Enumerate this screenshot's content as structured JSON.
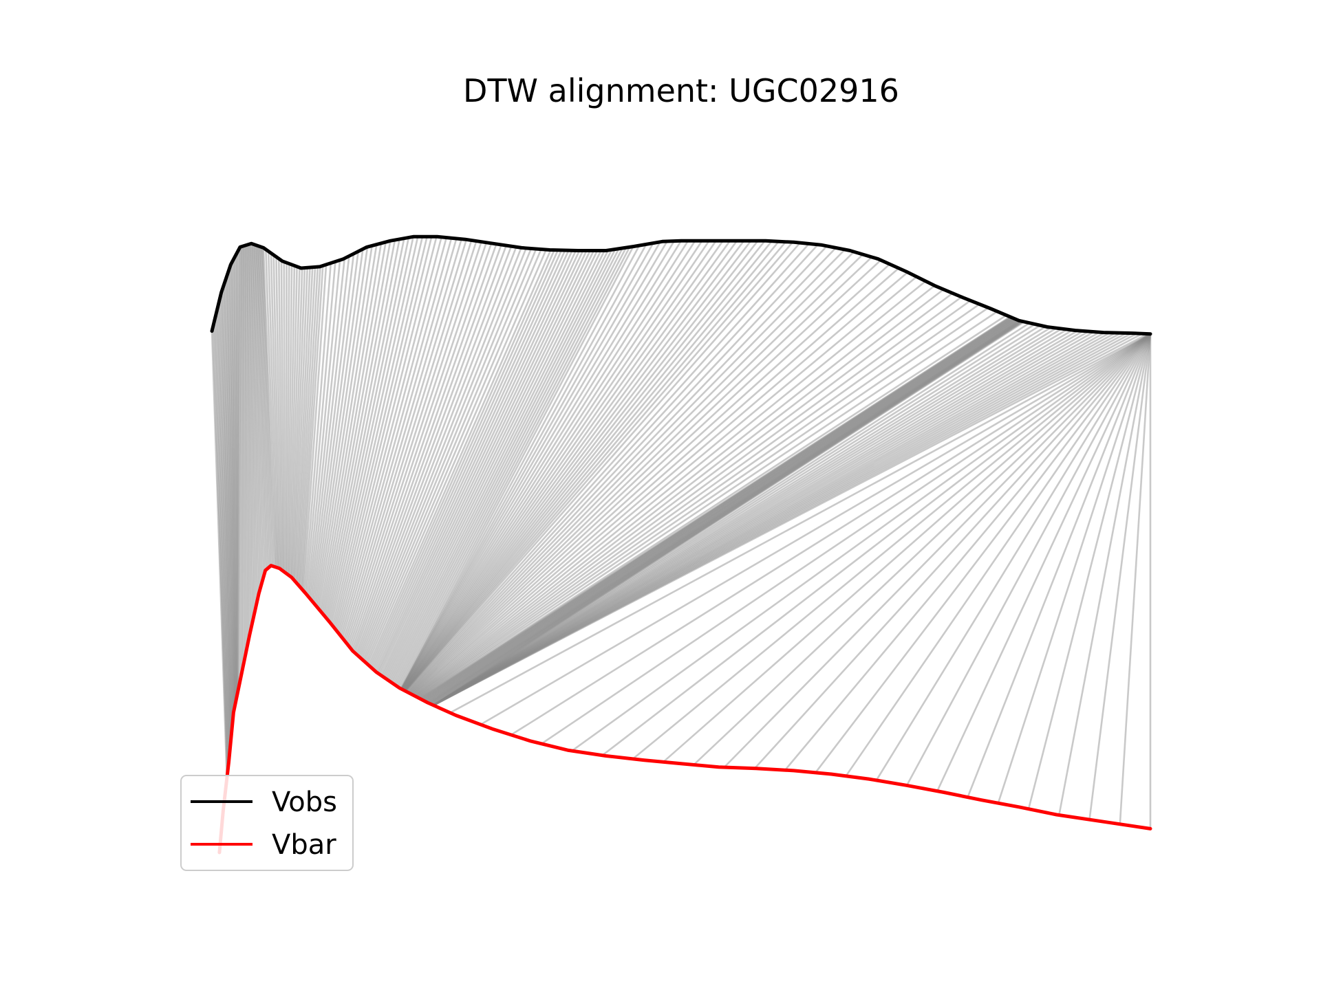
{
  "chart_data": {
    "type": "line",
    "title": "DTW alignment: UGC02916",
    "xlabel": "",
    "ylabel": "",
    "axes_visible": false,
    "grid": false,
    "legend": {
      "placement": "lower-left",
      "entries": [
        "Vobs",
        "Vbar"
      ]
    },
    "x_range": [
      0,
      1
    ],
    "y_range": [
      0,
      1
    ],
    "series": [
      {
        "name": "Vobs",
        "color": "#000000",
        "points": [
          [
            0.0,
            0.745
          ],
          [
            0.01,
            0.8
          ],
          [
            0.02,
            0.84
          ],
          [
            0.03,
            0.865
          ],
          [
            0.042,
            0.87
          ],
          [
            0.055,
            0.864
          ],
          [
            0.075,
            0.845
          ],
          [
            0.095,
            0.835
          ],
          [
            0.115,
            0.837
          ],
          [
            0.14,
            0.848
          ],
          [
            0.165,
            0.865
          ],
          [
            0.19,
            0.874
          ],
          [
            0.215,
            0.88
          ],
          [
            0.24,
            0.88
          ],
          [
            0.27,
            0.876
          ],
          [
            0.3,
            0.87
          ],
          [
            0.33,
            0.864
          ],
          [
            0.36,
            0.861
          ],
          [
            0.39,
            0.86
          ],
          [
            0.42,
            0.86
          ],
          [
            0.45,
            0.866
          ],
          [
            0.48,
            0.873
          ],
          [
            0.5,
            0.874
          ],
          [
            0.53,
            0.874
          ],
          [
            0.56,
            0.874
          ],
          [
            0.59,
            0.874
          ],
          [
            0.62,
            0.872
          ],
          [
            0.65,
            0.868
          ],
          [
            0.68,
            0.86
          ],
          [
            0.71,
            0.848
          ],
          [
            0.74,
            0.83
          ],
          [
            0.77,
            0.81
          ],
          [
            0.8,
            0.793
          ],
          [
            0.83,
            0.777
          ],
          [
            0.86,
            0.76
          ],
          [
            0.89,
            0.751
          ],
          [
            0.92,
            0.746
          ],
          [
            0.95,
            0.743
          ],
          [
            0.98,
            0.742
          ],
          [
            1.0,
            0.741
          ]
        ]
      },
      {
        "name": "Vbar",
        "color": "#ff0000",
        "points": [
          [
            0.008,
            0.0
          ],
          [
            0.012,
            0.06
          ],
          [
            0.018,
            0.13
          ],
          [
            0.023,
            0.2
          ],
          [
            0.03,
            0.245
          ],
          [
            0.04,
            0.31
          ],
          [
            0.05,
            0.37
          ],
          [
            0.057,
            0.403
          ],
          [
            0.063,
            0.41
          ],
          [
            0.072,
            0.406
          ],
          [
            0.085,
            0.393
          ],
          [
            0.1,
            0.37
          ],
          [
            0.125,
            0.33
          ],
          [
            0.15,
            0.288
          ],
          [
            0.175,
            0.258
          ],
          [
            0.2,
            0.235
          ],
          [
            0.23,
            0.214
          ],
          [
            0.26,
            0.196
          ],
          [
            0.3,
            0.176
          ],
          [
            0.34,
            0.159
          ],
          [
            0.38,
            0.146
          ],
          [
            0.42,
            0.138
          ],
          [
            0.46,
            0.132
          ],
          [
            0.5,
            0.127
          ],
          [
            0.54,
            0.122
          ],
          [
            0.58,
            0.12
          ],
          [
            0.62,
            0.117
          ],
          [
            0.66,
            0.112
          ],
          [
            0.7,
            0.105
          ],
          [
            0.74,
            0.096
          ],
          [
            0.78,
            0.086
          ],
          [
            0.82,
            0.075
          ],
          [
            0.86,
            0.065
          ],
          [
            0.9,
            0.054
          ],
          [
            0.95,
            0.044
          ],
          [
            1.0,
            0.034
          ]
        ]
      }
    ],
    "alignment_anchors": [
      [
        0.0,
        0.008
      ],
      [
        0.03,
        0.02
      ],
      [
        0.055,
        0.06
      ],
      [
        0.12,
        0.09
      ],
      [
        0.235,
        0.125
      ],
      [
        0.36,
        0.16
      ],
      [
        0.45,
        0.195
      ],
      [
        0.625,
        0.2
      ],
      [
        0.85,
        0.215
      ],
      [
        0.865,
        0.23
      ],
      [
        1.0,
        0.23
      ],
      [
        1.0,
        1.0
      ]
    ],
    "alignment_color": "#888888"
  }
}
